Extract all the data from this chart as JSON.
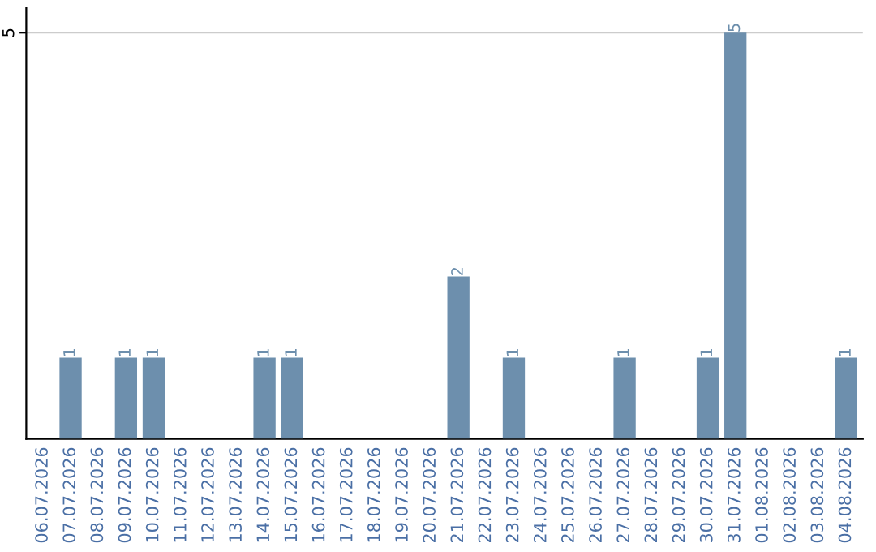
{
  "chart_data": {
    "type": "bar",
    "categories": [
      "06.07.2026",
      "07.07.2026",
      "08.07.2026",
      "09.07.2026",
      "10.07.2026",
      "11.07.2026",
      "12.07.2026",
      "13.07.2026",
      "14.07.2026",
      "15.07.2026",
      "16.07.2026",
      "17.07.2026",
      "18.07.2026",
      "19.07.2026",
      "20.07.2026",
      "21.07.2026",
      "22.07.2026",
      "23.07.2026",
      "24.07.2026",
      "25.07.2026",
      "26.07.2026",
      "27.07.2026",
      "28.07.2026",
      "29.07.2026",
      "30.07.2026",
      "31.07.2026",
      "01.08.2026",
      "02.08.2026",
      "03.08.2026",
      "04.08.2026"
    ],
    "values": [
      0,
      1,
      0,
      1,
      1,
      0,
      0,
      0,
      1,
      1,
      0,
      0,
      0,
      0,
      0,
      2,
      0,
      1,
      0,
      0,
      0,
      1,
      0,
      0,
      1,
      5,
      0,
      0,
      0,
      1
    ],
    "value_labels": [
      null,
      "1",
      null,
      "1",
      "1",
      null,
      null,
      null,
      "1",
      "1",
      null,
      null,
      null,
      null,
      null,
      "2",
      null,
      "1",
      null,
      null,
      null,
      "1",
      null,
      null,
      "1",
      "5",
      null,
      null,
      null,
      "1"
    ],
    "color": "#6d8fad",
    "ylim": [
      0,
      5.3
    ],
    "yticks": [
      5
    ],
    "grid": "y",
    "legend": false
  }
}
